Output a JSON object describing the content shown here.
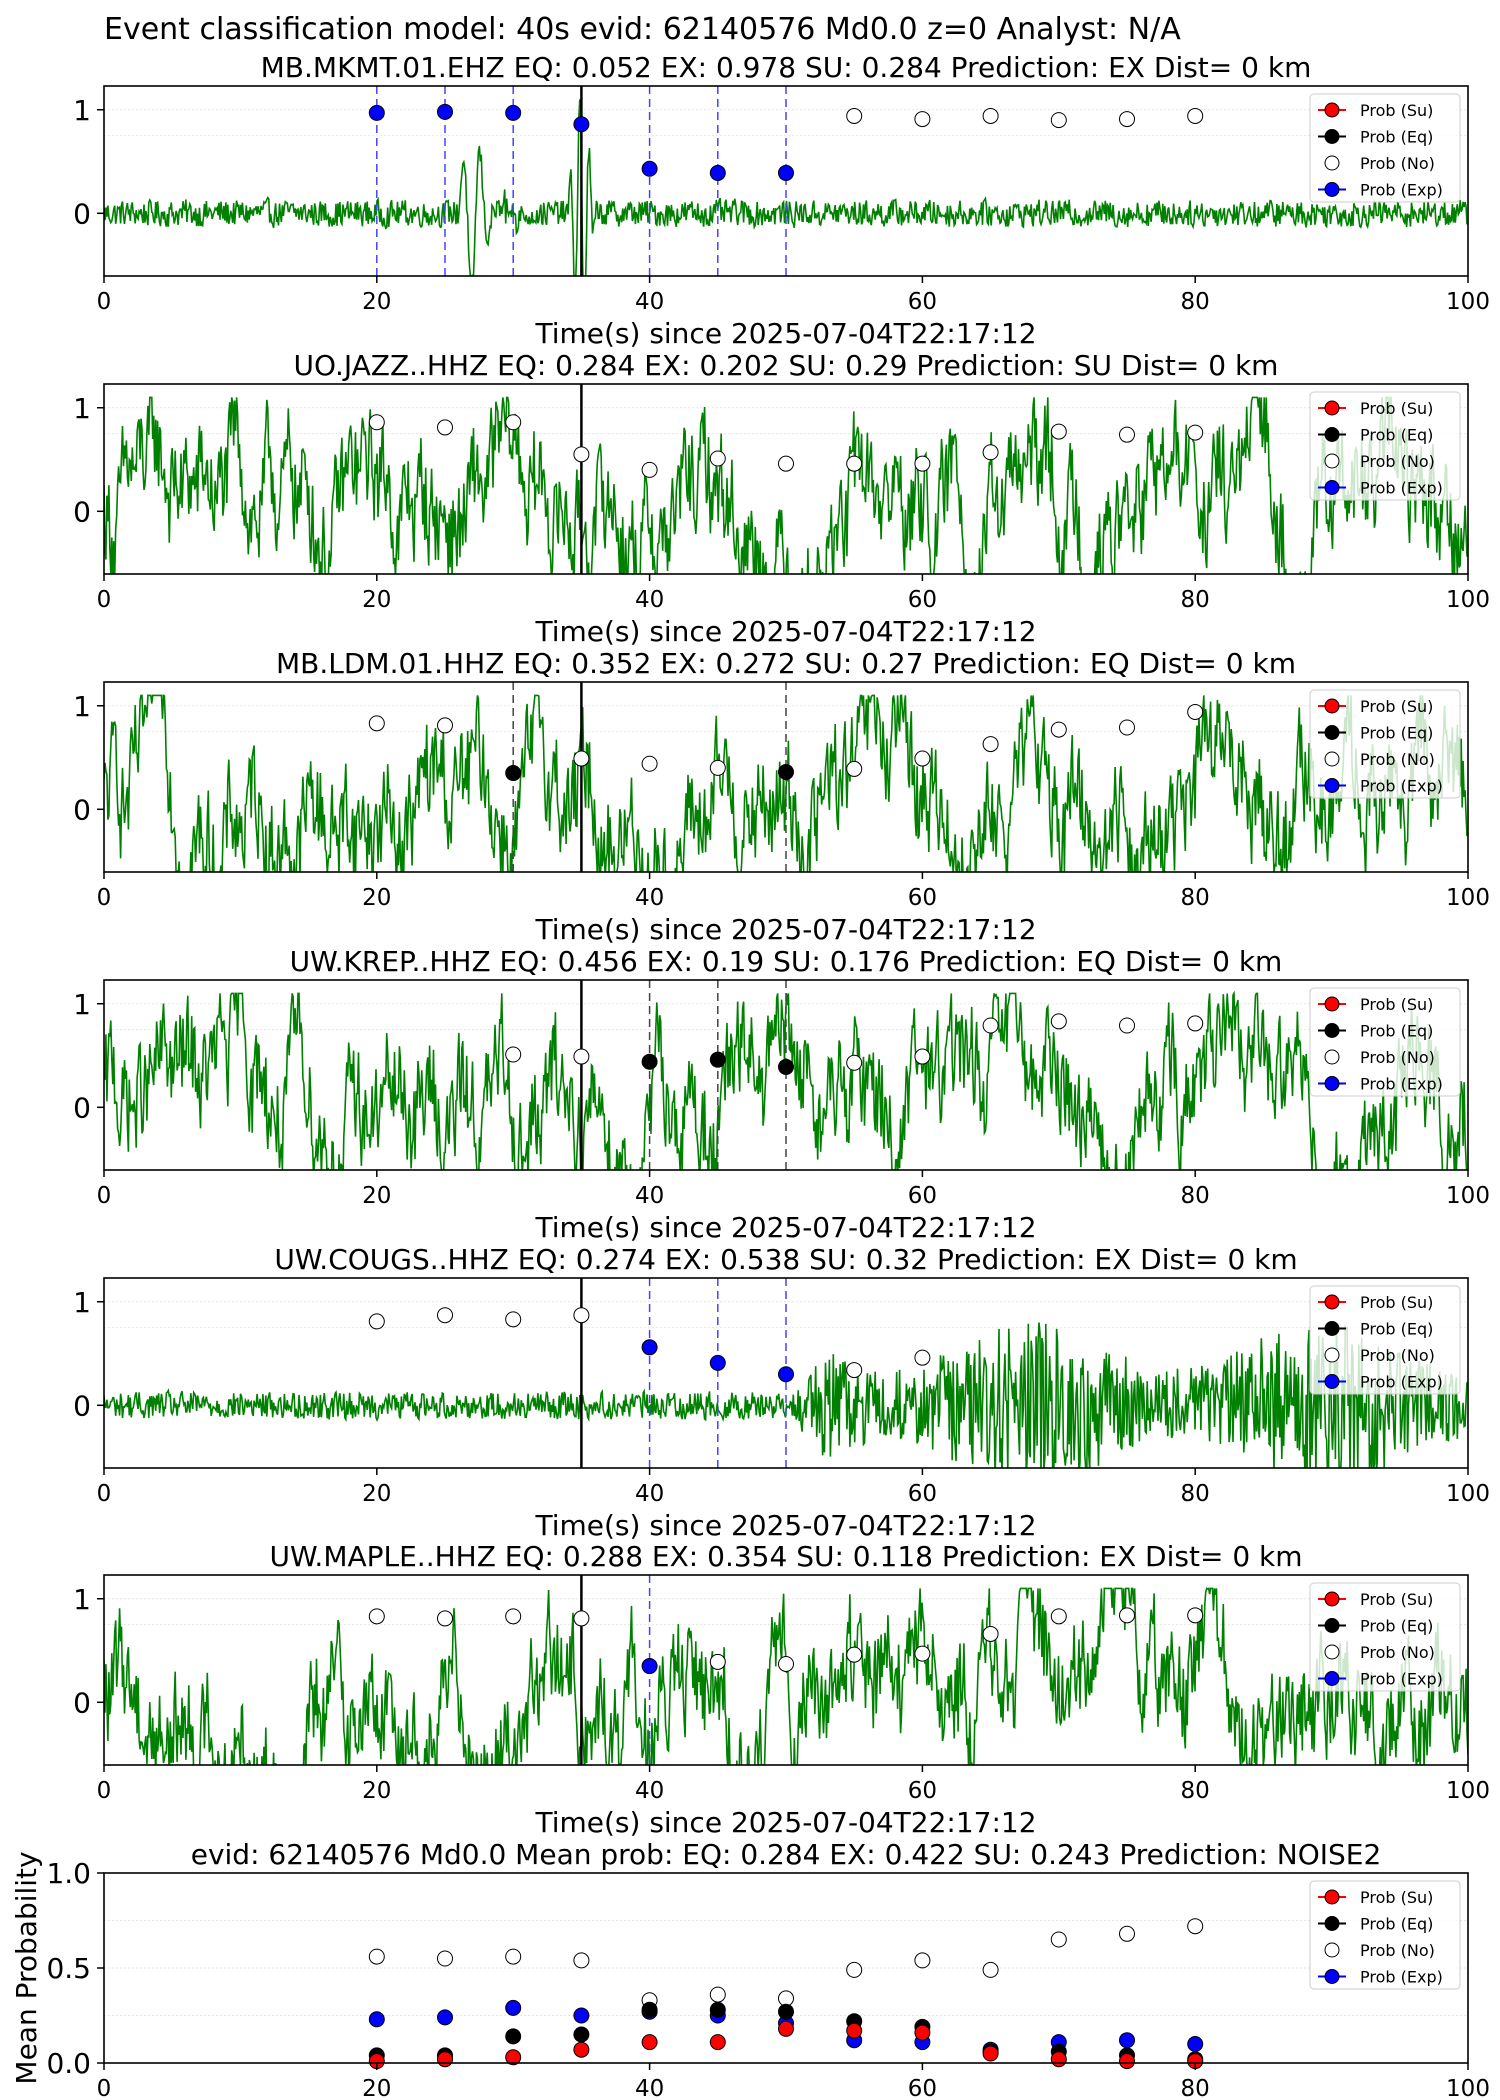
{
  "figure": {
    "suptitle": "Event classification model: 40s evid: 62140576 Md0.0 z=0 Analyst: N/A"
  },
  "legend_labels": [
    "Prob (Su)",
    "Prob (Eq)",
    "Prob (No)",
    "Prob (Exp)"
  ],
  "colors": {
    "trace": "#008000",
    "su": "#ff0000",
    "eq": "#000000",
    "no": "#ffffff",
    "exp": "#0000ff",
    "exp_line": "#4444ff",
    "eq_line": "#444444"
  },
  "chart_data": [
    {
      "type": "line",
      "title": "MB.MKMT.01.EHZ   EQ: 0.052  EX: 0.978  SU: 0.284   Prediction: EX    Dist= 0 km",
      "xlabel": "Time(s) since 2025-07-04T22:17:12",
      "ylabel": "",
      "xlim": [
        0,
        100
      ],
      "x_ticks": [
        0,
        20,
        40,
        60,
        80,
        100
      ],
      "y_ticks": [
        0,
        1
      ],
      "waveform": {
        "color": "#008000",
        "character": "low-amplitude noise with large pulses near 27 s and 35 s"
      },
      "vlines": [
        {
          "x": 20,
          "color": "blue",
          "style": "dashed"
        },
        {
          "x": 25,
          "color": "blue",
          "style": "dashed"
        },
        {
          "x": 30,
          "color": "blue",
          "style": "dashed"
        },
        {
          "x": 35,
          "color": "black",
          "style": "solid"
        },
        {
          "x": 40,
          "color": "blue",
          "style": "dashed"
        },
        {
          "x": 45,
          "color": "blue",
          "style": "dashed"
        },
        {
          "x": 50,
          "color": "blue",
          "style": "dashed"
        }
      ],
      "points": [
        {
          "x": 20,
          "y": 0.97,
          "class": "exp"
        },
        {
          "x": 25,
          "y": 0.98,
          "class": "exp"
        },
        {
          "x": 30,
          "y": 0.97,
          "class": "exp"
        },
        {
          "x": 35,
          "y": 0.86,
          "class": "exp"
        },
        {
          "x": 40,
          "y": 0.43,
          "class": "exp"
        },
        {
          "x": 45,
          "y": 0.39,
          "class": "exp"
        },
        {
          "x": 50,
          "y": 0.39,
          "class": "exp"
        },
        {
          "x": 55,
          "y": 0.94,
          "class": "no"
        },
        {
          "x": 60,
          "y": 0.91,
          "class": "no"
        },
        {
          "x": 65,
          "y": 0.94,
          "class": "no"
        },
        {
          "x": 70,
          "y": 0.9,
          "class": "no"
        },
        {
          "x": 75,
          "y": 0.91,
          "class": "no"
        },
        {
          "x": 80,
          "y": 0.94,
          "class": "no"
        }
      ],
      "legend": "upper right"
    },
    {
      "type": "line",
      "title": "UO.JAZZ..HHZ   EQ: 0.284  EX: 0.202  SU: 0.29   Prediction: SU    Dist= 0 km",
      "xlabel": "Time(s) since 2025-07-04T22:17:12",
      "ylabel": "",
      "xlim": [
        0,
        100
      ],
      "x_ticks": [
        0,
        20,
        40,
        60,
        80,
        100
      ],
      "y_ticks": [
        0,
        1
      ],
      "waveform": {
        "color": "#008000",
        "character": "large-amplitude low-frequency oscillation"
      },
      "vlines": [
        {
          "x": 35,
          "color": "black",
          "style": "solid"
        }
      ],
      "points": [
        {
          "x": 20,
          "y": 0.86,
          "class": "no"
        },
        {
          "x": 25,
          "y": 0.81,
          "class": "no"
        },
        {
          "x": 30,
          "y": 0.86,
          "class": "no"
        },
        {
          "x": 35,
          "y": 0.55,
          "class": "no"
        },
        {
          "x": 40,
          "y": 0.4,
          "class": "no"
        },
        {
          "x": 45,
          "y": 0.51,
          "class": "no"
        },
        {
          "x": 50,
          "y": 0.46,
          "class": "no"
        },
        {
          "x": 55,
          "y": 0.46,
          "class": "no"
        },
        {
          "x": 60,
          "y": 0.46,
          "class": "no"
        },
        {
          "x": 65,
          "y": 0.57,
          "class": "no"
        },
        {
          "x": 70,
          "y": 0.77,
          "class": "no"
        },
        {
          "x": 75,
          "y": 0.74,
          "class": "no"
        },
        {
          "x": 80,
          "y": 0.76,
          "class": "no"
        }
      ],
      "legend": "upper right"
    },
    {
      "type": "line",
      "title": "MB.LDM.01.HHZ   EQ: 0.352  EX: 0.272  SU: 0.27   Prediction: EQ    Dist= 0 km",
      "xlabel": "Time(s) since 2025-07-04T22:17:12",
      "ylabel": "",
      "xlim": [
        0,
        100
      ],
      "x_ticks": [
        0,
        20,
        40,
        60,
        80,
        100
      ],
      "y_ticks": [
        0,
        1
      ],
      "waveform": {
        "color": "#008000",
        "character": "large-amplitude oscillation"
      },
      "vlines": [
        {
          "x": 30,
          "color": "gray",
          "style": "dashed"
        },
        {
          "x": 35,
          "color": "black",
          "style": "solid"
        },
        {
          "x": 50,
          "color": "gray",
          "style": "dashed"
        }
      ],
      "points": [
        {
          "x": 20,
          "y": 0.83,
          "class": "no"
        },
        {
          "x": 25,
          "y": 0.81,
          "class": "no"
        },
        {
          "x": 30,
          "y": 0.35,
          "class": "eq"
        },
        {
          "x": 35,
          "y": 0.49,
          "class": "no"
        },
        {
          "x": 40,
          "y": 0.44,
          "class": "no"
        },
        {
          "x": 45,
          "y": 0.4,
          "class": "no"
        },
        {
          "x": 50,
          "y": 0.36,
          "class": "eq"
        },
        {
          "x": 55,
          "y": 0.39,
          "class": "no"
        },
        {
          "x": 60,
          "y": 0.49,
          "class": "no"
        },
        {
          "x": 65,
          "y": 0.63,
          "class": "no"
        },
        {
          "x": 70,
          "y": 0.77,
          "class": "no"
        },
        {
          "x": 75,
          "y": 0.79,
          "class": "no"
        },
        {
          "x": 80,
          "y": 0.94,
          "class": "no"
        }
      ],
      "legend": "upper right"
    },
    {
      "type": "line",
      "title": "UW.KREP..HHZ   EQ: 0.456  EX: 0.19  SU: 0.176   Prediction: EQ    Dist= 0 km",
      "xlabel": "Time(s) since 2025-07-04T22:17:12",
      "ylabel": "",
      "xlim": [
        0,
        100
      ],
      "x_ticks": [
        0,
        20,
        40,
        60,
        80,
        100
      ],
      "y_ticks": [
        0,
        1
      ],
      "waveform": {
        "color": "#008000",
        "character": "large-amplitude oscillation"
      },
      "vlines": [
        {
          "x": 35,
          "color": "black",
          "style": "solid"
        },
        {
          "x": 40,
          "color": "gray",
          "style": "dashed"
        },
        {
          "x": 45,
          "color": "gray",
          "style": "dashed"
        },
        {
          "x": 50,
          "color": "gray",
          "style": "dashed"
        }
      ],
      "points": [
        {
          "x": 30,
          "y": 0.51,
          "class": "no"
        },
        {
          "x": 35,
          "y": 0.49,
          "class": "no"
        },
        {
          "x": 40,
          "y": 0.44,
          "class": "eq"
        },
        {
          "x": 45,
          "y": 0.46,
          "class": "eq"
        },
        {
          "x": 50,
          "y": 0.39,
          "class": "eq"
        },
        {
          "x": 55,
          "y": 0.43,
          "class": "no"
        },
        {
          "x": 60,
          "y": 0.49,
          "class": "no"
        },
        {
          "x": 65,
          "y": 0.79,
          "class": "no"
        },
        {
          "x": 70,
          "y": 0.83,
          "class": "no"
        },
        {
          "x": 75,
          "y": 0.79,
          "class": "no"
        },
        {
          "x": 80,
          "y": 0.81,
          "class": "no"
        }
      ],
      "legend": "upper right"
    },
    {
      "type": "line",
      "title": "UW.COUGS..HHZ   EQ: 0.274  EX: 0.538  SU: 0.32   Prediction: EX    Dist= 0 km",
      "xlabel": "Time(s) since 2025-07-04T22:17:12",
      "ylabel": "",
      "xlim": [
        0,
        100
      ],
      "x_ticks": [
        0,
        20,
        40,
        60,
        80,
        100
      ],
      "y_ticks": [
        0,
        1
      ],
      "waveform": {
        "color": "#008000",
        "character": "low-amplitude noise, large high-frequency energy after 50 s"
      },
      "vlines": [
        {
          "x": 35,
          "color": "black",
          "style": "solid"
        },
        {
          "x": 40,
          "color": "blue",
          "style": "dashed"
        },
        {
          "x": 45,
          "color": "blue",
          "style": "dashed"
        },
        {
          "x": 50,
          "color": "blue",
          "style": "dashed"
        }
      ],
      "points": [
        {
          "x": 20,
          "y": 0.81,
          "class": "no"
        },
        {
          "x": 25,
          "y": 0.87,
          "class": "no"
        },
        {
          "x": 30,
          "y": 0.83,
          "class": "no"
        },
        {
          "x": 35,
          "y": 0.87,
          "class": "no"
        },
        {
          "x": 40,
          "y": 0.56,
          "class": "exp"
        },
        {
          "x": 45,
          "y": 0.41,
          "class": "exp"
        },
        {
          "x": 50,
          "y": 0.3,
          "class": "exp"
        },
        {
          "x": 55,
          "y": 0.34,
          "class": "no"
        },
        {
          "x": 60,
          "y": 0.46,
          "class": "no"
        }
      ],
      "legend": "upper right"
    },
    {
      "type": "line",
      "title": "UW.MAPLE..HHZ   EQ: 0.288  EX: 0.354  SU: 0.118   Prediction: EX    Dist= 0 km",
      "xlabel": "Time(s) since 2025-07-04T22:17:12",
      "ylabel": "",
      "xlim": [
        0,
        100
      ],
      "x_ticks": [
        0,
        20,
        40,
        60,
        80,
        100
      ],
      "y_ticks": [
        0,
        1
      ],
      "waveform": {
        "color": "#008000",
        "character": "large-amplitude oscillation"
      },
      "vlines": [
        {
          "x": 35,
          "color": "black",
          "style": "solid"
        },
        {
          "x": 40,
          "color": "blue",
          "style": "dashed"
        }
      ],
      "points": [
        {
          "x": 20,
          "y": 0.83,
          "class": "no"
        },
        {
          "x": 25,
          "y": 0.81,
          "class": "no"
        },
        {
          "x": 30,
          "y": 0.83,
          "class": "no"
        },
        {
          "x": 35,
          "y": 0.81,
          "class": "no"
        },
        {
          "x": 40,
          "y": 0.35,
          "class": "exp"
        },
        {
          "x": 45,
          "y": 0.39,
          "class": "no"
        },
        {
          "x": 50,
          "y": 0.37,
          "class": "no"
        },
        {
          "x": 55,
          "y": 0.46,
          "class": "no"
        },
        {
          "x": 60,
          "y": 0.47,
          "class": "no"
        },
        {
          "x": 65,
          "y": 0.66,
          "class": "no"
        },
        {
          "x": 70,
          "y": 0.83,
          "class": "no"
        },
        {
          "x": 75,
          "y": 0.84,
          "class": "no"
        },
        {
          "x": 80,
          "y": 0.84,
          "class": "no"
        }
      ],
      "legend": "upper right"
    },
    {
      "type": "scatter",
      "title": "evid: 62140576  Md0.0   Mean prob:   EQ: 0.284  EX: 0.422  SU: 0.243   Prediction: NOISE2",
      "xlabel": "",
      "ylabel": "Mean Probability",
      "xlim": [
        0,
        100
      ],
      "ylim": [
        0,
        1.0
      ],
      "x_ticks": [
        0,
        20,
        40,
        60,
        80,
        100
      ],
      "y_ticks": [
        "0.0",
        "0.5",
        "1.0"
      ],
      "x": [
        20,
        25,
        30,
        35,
        40,
        45,
        50,
        55,
        60,
        65,
        70,
        75,
        80
      ],
      "series": [
        {
          "name": "Prob (Su)",
          "class": "su",
          "values": [
            0.01,
            0.02,
            0.03,
            0.07,
            0.11,
            0.11,
            0.18,
            0.17,
            0.16,
            0.05,
            0.02,
            0.01,
            0.01
          ]
        },
        {
          "name": "Prob (Eq)",
          "class": "eq",
          "values": [
            0.04,
            0.04,
            0.14,
            0.15,
            0.28,
            0.28,
            0.27,
            0.22,
            0.19,
            0.06,
            0.06,
            0.04,
            0.02
          ]
        },
        {
          "name": "Prob (No)",
          "class": "no",
          "values": [
            0.56,
            0.55,
            0.56,
            0.54,
            0.33,
            0.36,
            0.34,
            0.49,
            0.54,
            0.49,
            0.65,
            0.68,
            0.72
          ]
        },
        {
          "name": "Prob (Exp)",
          "class": "exp",
          "values": [
            0.23,
            0.24,
            0.29,
            0.25,
            0.27,
            0.25,
            0.21,
            0.12,
            0.11,
            0.07,
            0.11,
            0.12,
            0.1
          ]
        }
      ],
      "legend": "upper right"
    }
  ]
}
